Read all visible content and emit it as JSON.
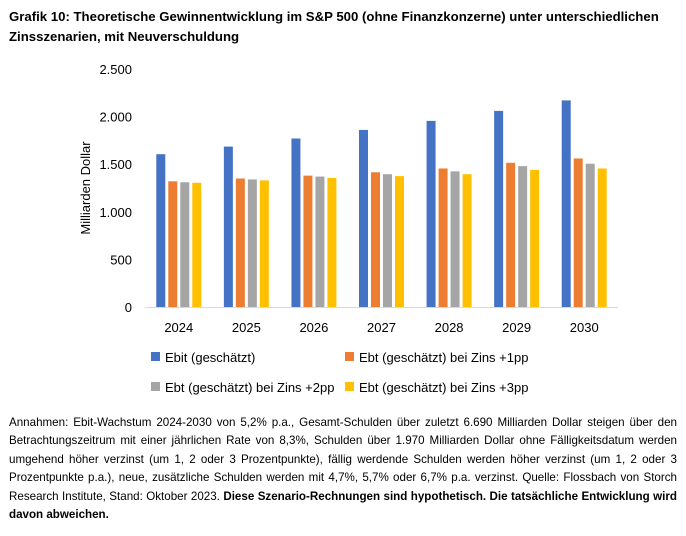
{
  "title": "Grafik 10: Theoretische Gewinnentwicklung im S&P 500 (ohne Finanzkonzerne) unter unterschiedlichen Zinsszenarien, mit Neuverschuldung",
  "chart_data": {
    "type": "bar",
    "categories": [
      "2024",
      "2025",
      "2026",
      "2027",
      "2028",
      "2029",
      "2030"
    ],
    "series": [
      {
        "name": "Ebit (geschätzt)",
        "color": "#4472C4",
        "values": [
          1605,
          1685,
          1770,
          1860,
          1955,
          2060,
          2170
        ]
      },
      {
        "name": "Ebt (geschätzt) bei Zins +1pp",
        "color": "#ED7D31",
        "values": [
          1320,
          1350,
          1380,
          1415,
          1455,
          1515,
          1560
        ]
      },
      {
        "name": "Ebt (geschätzt) bei Zins +2pp",
        "color": "#A5A5A5",
        "values": [
          1310,
          1340,
          1370,
          1395,
          1425,
          1480,
          1505
        ]
      },
      {
        "name": "Ebt (geschätzt) bei Zins +3pp",
        "color": "#FFC000",
        "values": [
          1305,
          1330,
          1355,
          1375,
          1395,
          1440,
          1455
        ]
      }
    ],
    "ylabel": "Milliarden Dollar",
    "xlabel": "",
    "ylim": [
      0,
      2500
    ],
    "yticks": [
      0,
      500,
      1000,
      1500,
      2000,
      2500
    ],
    "ytick_labels": [
      "0",
      "500",
      "1.000",
      "1.500",
      "2.000",
      "2.500"
    ],
    "grid": false,
    "legend_position": "bottom"
  },
  "footnote": {
    "text": "Annahmen: Ebit-Wachstum 2024-2030 von 5,2% p.a., Gesamt-Schulden über zuletzt 6.690 Milliarden Dollar steigen über den Betrachtungszeitrum mit einer jährlichen Rate von 8,3%, Schulden über 1.970 Milliarden Dollar ohne Fälligkeitsdatum werden umgehend höher verzinst (um 1, 2 oder 3 Prozentpunkte), fällig werdende Schulden werden höher verzinst (um 1, 2 oder 3 Prozentpunkte p.a.), neue, zusätzliche Schulden werden mit 4,7%, 5,7% oder 6,7% p.a. verzinst. Quelle: Flossbach von Storch Research Institute, Stand: Oktober 2023. ",
    "bold": "Diese Szenario-Rechnungen sind hypothetisch. Die tatsächliche Entwicklung wird davon abweichen."
  }
}
